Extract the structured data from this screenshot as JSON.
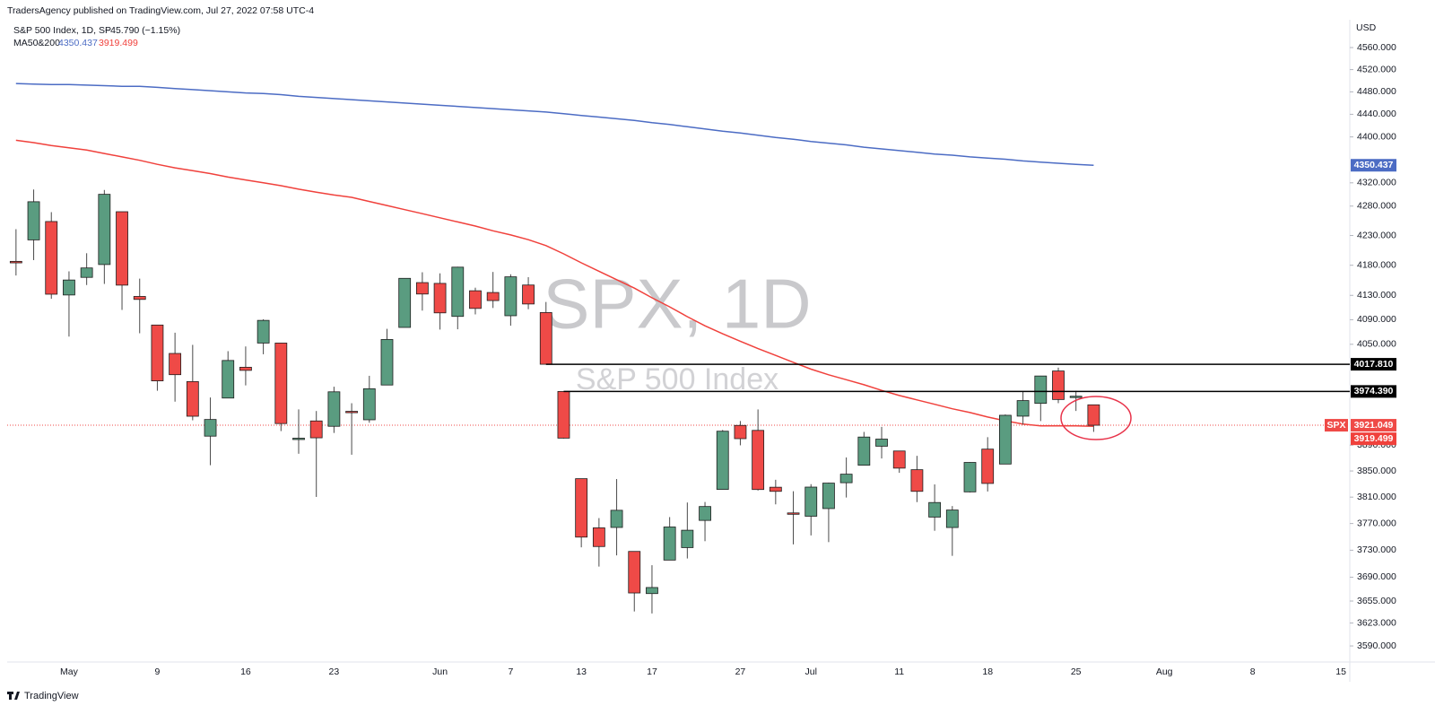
{
  "header": {
    "publisher": "TradersAgency published on TradingView.com, Jul 27, 2022 07:58 UTC-4"
  },
  "footer": {
    "brand": "TradingView"
  },
  "chart_data": {
    "type": "candlestick",
    "legend_title": "S&P 500 Index, 1D, SP",
    "change": "−45.790 (−1.15%)",
    "indicator": "MA50&200",
    "watermark": "SPX, 1D",
    "watermark_subtitle": "S&P 500 Index",
    "symbol": "SPX",
    "currency": "USD",
    "log_scale": true,
    "grid": false,
    "up_color": "#5a9c80",
    "down_color": "#ef4a47",
    "ylim": [
      3567,
      4611
    ],
    "yticks": [
      {
        "value": 4560,
        "label": "4560.000"
      },
      {
        "value": 4520,
        "label": "4520.000"
      },
      {
        "value": 4480,
        "label": "4480.000"
      },
      {
        "value": 4440,
        "label": "4440.000"
      },
      {
        "value": 4400,
        "label": "4400.000"
      },
      {
        "value": 4320,
        "label": "4320.000"
      },
      {
        "value": 4280,
        "label": "4280.000"
      },
      {
        "value": 4230,
        "label": "4230.000"
      },
      {
        "value": 4180,
        "label": "4180.000"
      },
      {
        "value": 4130,
        "label": "4130.000"
      },
      {
        "value": 4090,
        "label": "4090.000"
      },
      {
        "value": 4050,
        "label": "4050.000"
      },
      {
        "value": 3890,
        "label": "3890.000"
      },
      {
        "value": 3850,
        "label": "3850.000"
      },
      {
        "value": 3810,
        "label": "3810.000"
      },
      {
        "value": 3770,
        "label": "3770.000"
      },
      {
        "value": 3730,
        "label": "3730.000"
      },
      {
        "value": 3690,
        "label": "3690.000"
      },
      {
        "value": 3655,
        "label": "3655.000"
      },
      {
        "value": 3623,
        "label": "3623.000"
      },
      {
        "value": 3590,
        "label": "3590.000"
      }
    ],
    "categories": [
      null,
      null,
      null,
      "May",
      null,
      null,
      null,
      null,
      "9",
      null,
      null,
      null,
      null,
      "16",
      null,
      null,
      null,
      null,
      "23",
      null,
      null,
      null,
      null,
      null,
      "Jun",
      null,
      null,
      null,
      "7",
      null,
      null,
      null,
      "13",
      null,
      null,
      null,
      "17",
      null,
      null,
      null,
      null,
      "27",
      null,
      null,
      null,
      "Jul",
      null,
      null,
      null,
      null,
      "11",
      null,
      null,
      null,
      null,
      "18",
      null,
      null,
      null,
      null,
      "25",
      null,
      null,
      null,
      null,
      "Aug",
      null,
      null,
      null,
      null,
      "8",
      null,
      null,
      null,
      null,
      "15"
    ],
    "open": [
      4186.5,
      4222.6,
      4253.7,
      4130.6,
      4159.8,
      4181.2,
      4270.4,
      4128.2,
      4081.3,
      4035.2,
      3990.1,
      3904.0,
      3963.9,
      4013.0,
      4052.0,
      4052.0,
      3899.0,
      3927.8,
      3919.4,
      3942.9,
      3929.6,
      3984.6,
      4077.4,
      4151.1,
      4149.8,
      4095.4,
      4137.6,
      4134.7,
      4096.5,
      4147.1,
      4101.7,
      3974.4,
      3838.2,
      3763.5,
      3764.1,
      3728.2,
      3665.9,
      3715.3,
      3733.9,
      3774.7,
      3821.8,
      3920.8,
      3913.0,
      3825.1,
      3786.0,
      3781.0,
      3792.6,
      3832.0,
      3858.9,
      3888.3,
      3880.9,
      3852.0,
      3779.7,
      3764.0,
      3818.0,
      3883.8,
      3860.7,
      3935.3,
      3955.5,
      4007.0,
      3965.7,
      3953.2,
      null,
      null,
      null,
      null,
      null,
      null,
      null,
      null,
      null,
      null,
      null,
      null,
      null,
      null
    ],
    "high": [
      4240.7,
      4308.5,
      4269.7,
      4169.8,
      4200.1,
      4307.7,
      4270.4,
      4157.7,
      4081.3,
      4068.8,
      4049.1,
      3964.8,
      4038.9,
      4046.5,
      4090.7,
      4052.0,
      3946.0,
      3943.4,
      3981.9,
      3955.7,
      3999.3,
      4075.1,
      4158.5,
      4168.3,
      4166.5,
      4177.5,
      4142.7,
      4168.8,
      4164.9,
      4160.1,
      4119.1,
      3974.4,
      3838.2,
      3778.2,
      3837.6,
      3728.2,
      3707.7,
      3779.7,
      3801.8,
      3802.6,
      3913.7,
      3927.7,
      3945.9,
      3836.5,
      3819.0,
      3829.8,
      3832.2,
      3870.9,
      3910.6,
      3918.5,
      3880.9,
      3873.4,
      3829.4,
      3796.4,
      3863.6,
      3902.4,
      3938.0,
      3974.1,
      3999.3,
      4012.4,
      3975.3,
      3953.2,
      null,
      null,
      null,
      null,
      null,
      null,
      null,
      null,
      null,
      null,
      null,
      null,
      null,
      null
    ],
    "low": [
      4162.9,
      4188.6,
      4124.3,
      4062.5,
      4147.1,
      4148.9,
      4106.0,
      4067.9,
      3975.5,
      3958.2,
      3928.8,
      3858.9,
      3963.9,
      3984.0,
      4033.9,
      3911.9,
      3876.6,
      3810.3,
      3909.0,
      3875.1,
      3925.0,
      3984.6,
      4077.4,
      4104.9,
      4073.9,
      4074.4,
      4098.7,
      4109.2,
      4080.2,
      4107.2,
      4017.2,
      3900.2,
      3734.3,
      3705.7,
      3722.3,
      3639.8,
      3636.9,
      3715.3,
      3717.7,
      3743.5,
      3821.8,
      3889.7,
      3820.1,
      3799.0,
      3738.7,
      3752.1,
      3742.1,
      3809.4,
      3858.9,
      3869.3,
      3847.2,
      3802.4,
      3759.1,
      3721.6,
      3817.2,
      3818.6,
      3860.7,
      3922.0,
      3927.6,
      3955.8,
      3943.5,
      3910.7,
      null,
      null,
      null,
      null,
      null,
      null,
      null,
      null,
      null,
      null,
      null,
      null,
      null,
      null
    ],
    "close": [
      4184.0,
      4287.5,
      4131.9,
      4155.4,
      4175.5,
      4300.2,
      4146.9,
      4123.3,
      3991.2,
      4001.1,
      3935.2,
      3930.1,
      4023.9,
      4008.0,
      4088.9,
      3923.7,
      3900.8,
      3901.4,
      3973.8,
      3941.5,
      3978.7,
      4057.8,
      4158.2,
      4132.2,
      4101.2,
      4176.8,
      4108.5,
      4121.4,
      4160.7,
      4115.8,
      4017.8,
      3900.9,
      3749.6,
      3735.5,
      3790.0,
      3666.8,
      3674.8,
      3764.8,
      3759.9,
      3795.7,
      3911.7,
      3900.1,
      3821.6,
      3818.8,
      3785.4,
      3825.3,
      3831.4,
      3845.1,
      3902.6,
      3899.4,
      3854.4,
      3818.8,
      3801.8,
      3790.4,
      3863.2,
      3830.9,
      3936.7,
      3959.9,
      3999.0,
      3961.6,
      3966.8,
      3921.049,
      null,
      null,
      null,
      null,
      null,
      null,
      null,
      null,
      null,
      null,
      null,
      null,
      null,
      null
    ],
    "lines": [
      {
        "color": "#4c6cc4",
        "values": [
          4495,
          4494,
          4493,
          4493,
          4492,
          4491,
          4490,
          4490,
          4488,
          4486,
          4484,
          4482,
          4480,
          4478,
          4477,
          4475,
          4472,
          4470,
          4468,
          4466,
          4464,
          4462,
          4460,
          4458,
          4456,
          4454,
          4452,
          4450,
          4448,
          4446,
          4444,
          4441,
          4438,
          4435,
          4432,
          4429,
          4425,
          4422,
          4418,
          4414,
          4410,
          4407,
          4403,
          4399,
          4396,
          4392,
          4389,
          4386,
          4382,
          4379,
          4376,
          4373,
          4370,
          4368,
          4365,
          4363,
          4361,
          4358,
          4356,
          4354,
          4352,
          4350.437,
          null,
          null,
          null,
          null,
          null,
          null,
          null,
          null,
          null,
          null,
          null,
          null,
          null,
          null
        ]
      },
      {
        "color": "#f0413c",
        "values": [
          4394,
          4390,
          4385,
          4381,
          4377,
          4371,
          4365,
          4359,
          4352,
          4346,
          4341,
          4336,
          4330,
          4325,
          4320,
          4315,
          4309,
          4304,
          4299,
          4295,
          4288,
          4281,
          4274,
          4267,
          4260,
          4253,
          4246,
          4238,
          4231,
          4223,
          4213,
          4199,
          4184,
          4170,
          4156,
          4142,
          4126,
          4111,
          4095,
          4080,
          4067,
          4055,
          4043,
          4032,
          4021,
          4010,
          4001,
          3993,
          3985,
          3976,
          3968,
          3961,
          3954,
          3947,
          3941,
          3934,
          3928,
          3923,
          3920,
          3920,
          3920,
          3919.499,
          null,
          null,
          null,
          null,
          null,
          null,
          null,
          null,
          null,
          null,
          null,
          null,
          null,
          null
        ]
      }
    ],
    "levels": [
      {
        "value": 4017.81,
        "label": "4017.810",
        "color": "#000000"
      },
      {
        "value": 3974.39,
        "label": "3974.390",
        "color": "#000000"
      }
    ]
  }
}
